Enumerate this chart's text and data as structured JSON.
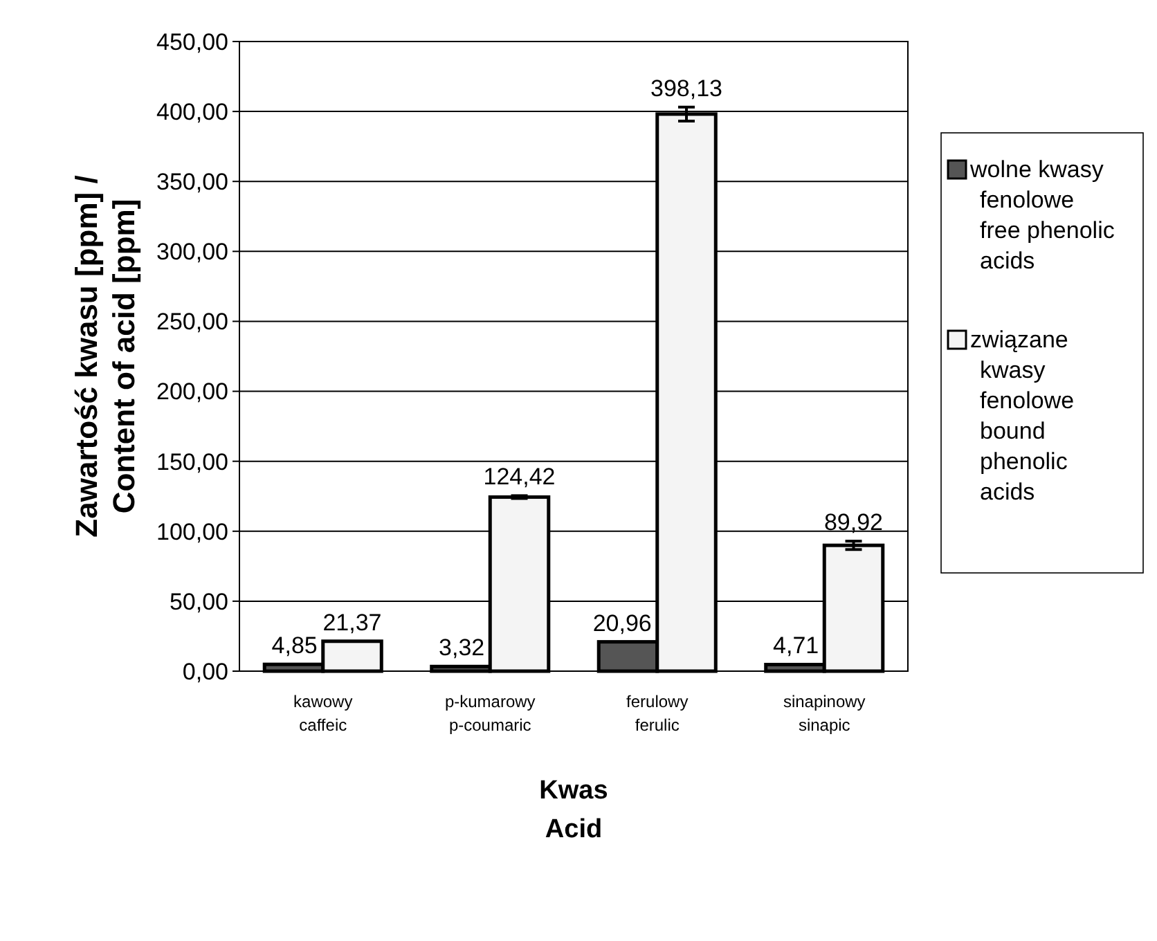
{
  "chart_data": {
    "type": "bar",
    "xlabel": "Kwas\nAcid",
    "ylabel": "Zawartość kwasu [ppm] /\nContent of acid [ppm]",
    "categories": [
      "kawowy\ncaffeic",
      "p-kumarowy\np-coumaric",
      "ferulowy\nferulic",
      "sinapinowy\nsinapic"
    ],
    "series": [
      {
        "name": "wolne kwasy\nfenolowe\nfree phenolic\nacids",
        "color": "#555555",
        "values": [
          4.85,
          3.32,
          20.96,
          4.71
        ],
        "value_labels": [
          "4,85",
          "3,32",
          "20,96",
          "4,71"
        ]
      },
      {
        "name": "związane\nkwasy\nfenolowe\nbound\nphenolic\nacids",
        "color": "#f4f4f4",
        "values": [
          21.37,
          124.42,
          398.13,
          89.92
        ],
        "value_labels": [
          "21,37",
          "124,42",
          "398,13",
          "89,92"
        ],
        "errors": [
          null,
          1,
          5,
          3
        ]
      }
    ],
    "ylim": [
      0,
      450
    ],
    "yticks": [
      {
        "value": 0,
        "label": "0,00"
      },
      {
        "value": 50,
        "label": "50,00"
      },
      {
        "value": 100,
        "label": "100,00"
      },
      {
        "value": 150,
        "label": "150,00"
      },
      {
        "value": 200,
        "label": "200,00"
      },
      {
        "value": 250,
        "label": "250,00"
      },
      {
        "value": 300,
        "label": "300,00"
      },
      {
        "value": 350,
        "label": "350,00"
      },
      {
        "value": 400,
        "label": "400,00"
      },
      {
        "value": 450,
        "label": "450,00"
      }
    ],
    "grid": "y",
    "legend": "right"
  }
}
